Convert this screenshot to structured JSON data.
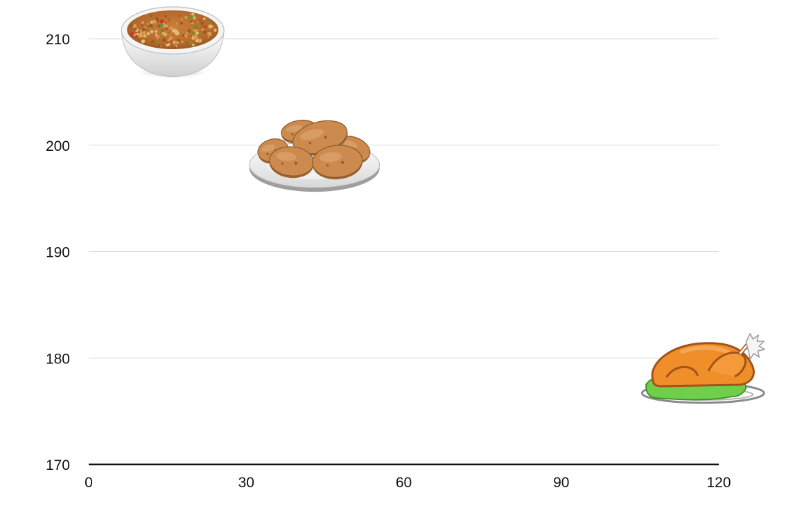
{
  "chart_data": {
    "type": "scatter",
    "title": "",
    "xlabel": "",
    "ylabel": "",
    "xlim": [
      0,
      120
    ],
    "ylim": [
      170,
      210
    ],
    "x_ticks": [
      "0",
      "30",
      "60",
      "90",
      "120"
    ],
    "y_ticks": [
      "170",
      "180",
      "190",
      "200",
      "210"
    ],
    "grid": "horizontal",
    "legend": "none",
    "points": [
      {
        "x": 16,
        "y": 210,
        "marker": "stuffing-bowl-icon"
      },
      {
        "x": 43,
        "y": 199,
        "marker": "roast-potatoes-plate-icon"
      },
      {
        "x": 117,
        "y": 178,
        "marker": "roast-turkey-platter-icon"
      }
    ]
  },
  "colors": {
    "grid": "#d9d9d9",
    "axis": "#111111",
    "text": "#111111"
  }
}
